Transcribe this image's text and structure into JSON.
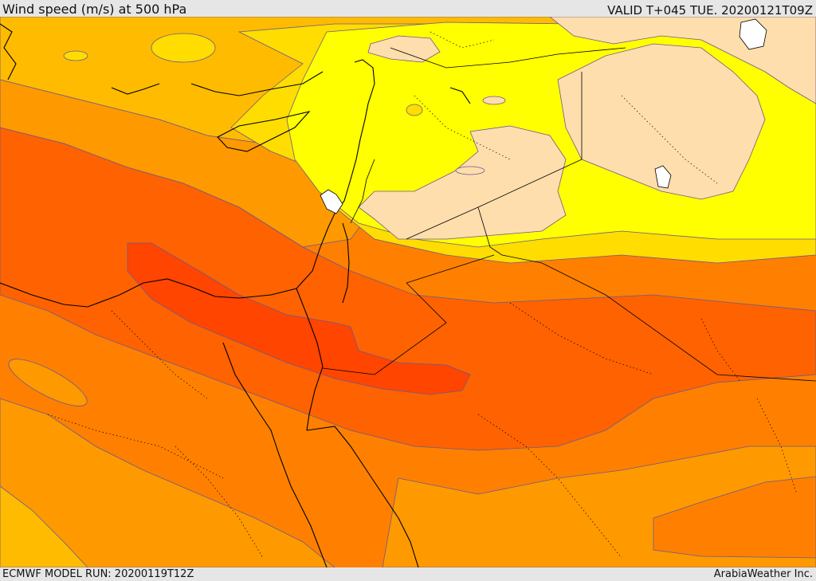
{
  "header": {
    "title": "Wind speed (m/s) at 500 hPa",
    "valid_time": "VALID T+045 TUE. 20200121T09Z"
  },
  "footer": {
    "model_run": "ECMWF MODEL RUN: 20200119T12Z",
    "credit": "ArabiaWeather Inc."
  },
  "palette": {
    "pale": "#ffdead",
    "yellow": "#ffff00",
    "gold": "#ffdd00",
    "amber": "#ffbb00",
    "light_orange": "#ff9900",
    "orange": "#ff8000",
    "dark_orange": "#ff6200",
    "red_orange": "#ff4500",
    "contour": "#6b5a8c",
    "coast": "#000000"
  }
}
